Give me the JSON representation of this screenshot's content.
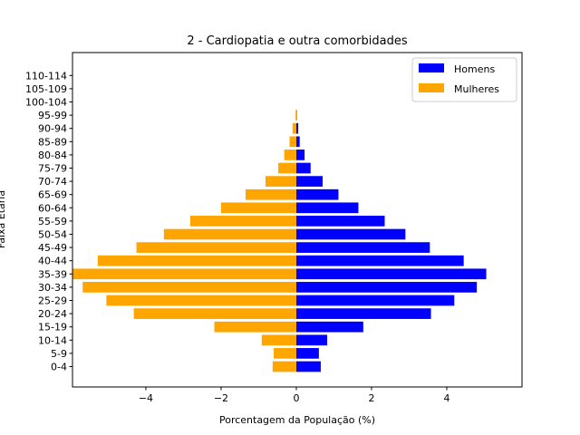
{
  "chart_data": {
    "type": "bar",
    "orientation": "horizontal",
    "title": "2 - Cardiopatia e outra comorbidades",
    "xlabel": "Porcentagem da População (%)",
    "ylabel": "Faixa Etária",
    "xlim": [
      -5.95,
      6.0
    ],
    "xticks": [
      -4,
      -2,
      0,
      2,
      4
    ],
    "xtick_labels": [
      "−4",
      "−2",
      "0",
      "2",
      "4"
    ],
    "legend_position": "top-right",
    "categories": [
      "0-4",
      "5-9",
      "10-14",
      "15-19",
      "20-24",
      "25-29",
      "30-34",
      "35-39",
      "40-44",
      "45-49",
      "50-54",
      "55-59",
      "60-64",
      "65-69",
      "70-74",
      "75-79",
      "80-84",
      "85-89",
      "90-94",
      "95-99",
      "100-104",
      "105-109",
      "110-114"
    ],
    "series": [
      {
        "name": "Homens",
        "color": "#0000ff",
        "values": [
          0.65,
          0.6,
          0.82,
          1.78,
          3.58,
          4.2,
          4.8,
          5.05,
          4.45,
          3.55,
          2.9,
          2.35,
          1.65,
          1.12,
          0.7,
          0.38,
          0.22,
          0.09,
          0.05,
          0.01,
          0,
          0,
          0
        ]
      },
      {
        "name": "Mulheres",
        "color": "#ffa500",
        "values": [
          -0.63,
          -0.6,
          -0.92,
          -2.18,
          -4.32,
          -5.05,
          -5.68,
          -5.95,
          -5.28,
          -4.25,
          -3.52,
          -2.82,
          -2.0,
          -1.35,
          -0.82,
          -0.48,
          -0.32,
          -0.18,
          -0.1,
          -0.02,
          0,
          0,
          0
        ]
      }
    ]
  }
}
